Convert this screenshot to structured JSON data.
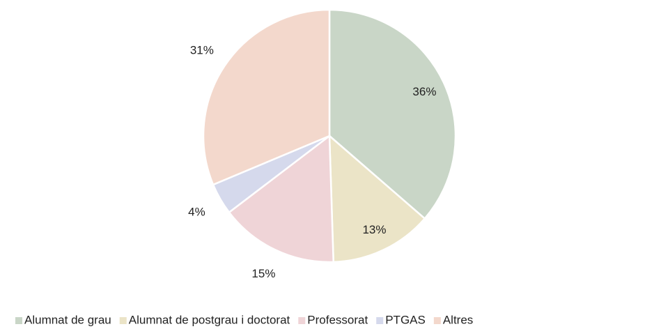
{
  "chart_data": {
    "type": "pie",
    "categories": [
      "Alumnat de grau",
      "Alumnat de postgrau i doctorat",
      "Professorat",
      "PTGAS",
      "Altres"
    ],
    "values": [
      36,
      13,
      15,
      4,
      31
    ],
    "value_labels": [
      "36%",
      "13%",
      "15%",
      "4%",
      "31%"
    ],
    "colors": [
      "#c9d6c7",
      "#ebe4c7",
      "#efd4d7",
      "#d5d9ec",
      "#f3d8cc"
    ],
    "legend": "bottom"
  }
}
